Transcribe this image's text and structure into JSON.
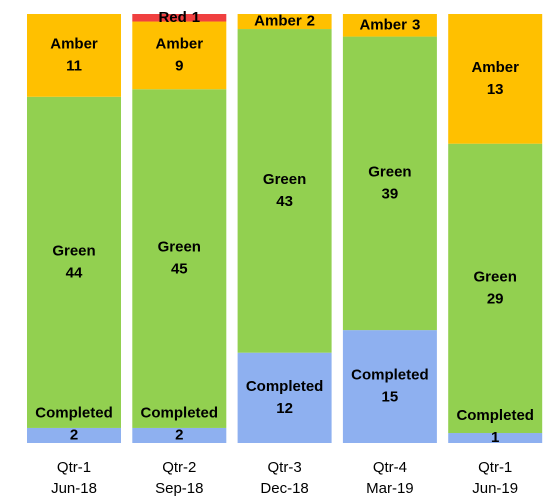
{
  "chart_data": {
    "type": "bar",
    "stacked": "percent",
    "categories": [
      [
        "Qtr-1",
        "Jun-18"
      ],
      [
        "Qtr-2",
        "Sep-18"
      ],
      [
        "Qtr-3",
        "Dec-18"
      ],
      [
        "Qtr-4",
        "Mar-19"
      ],
      [
        "Qtr-1",
        "Jun-19"
      ]
    ],
    "series": [
      {
        "name": "Completed",
        "color": "#8eb0f0",
        "values": [
          2,
          2,
          12,
          15,
          1
        ]
      },
      {
        "name": "Green",
        "color": "#92d050",
        "values": [
          44,
          45,
          43,
          39,
          29
        ]
      },
      {
        "name": "Amber",
        "color": "#ffc000",
        "values": [
          11,
          9,
          2,
          3,
          13
        ]
      },
      {
        "name": "Red",
        "color": "#f04040",
        "values": [
          null,
          1,
          null,
          null,
          null
        ]
      }
    ]
  }
}
